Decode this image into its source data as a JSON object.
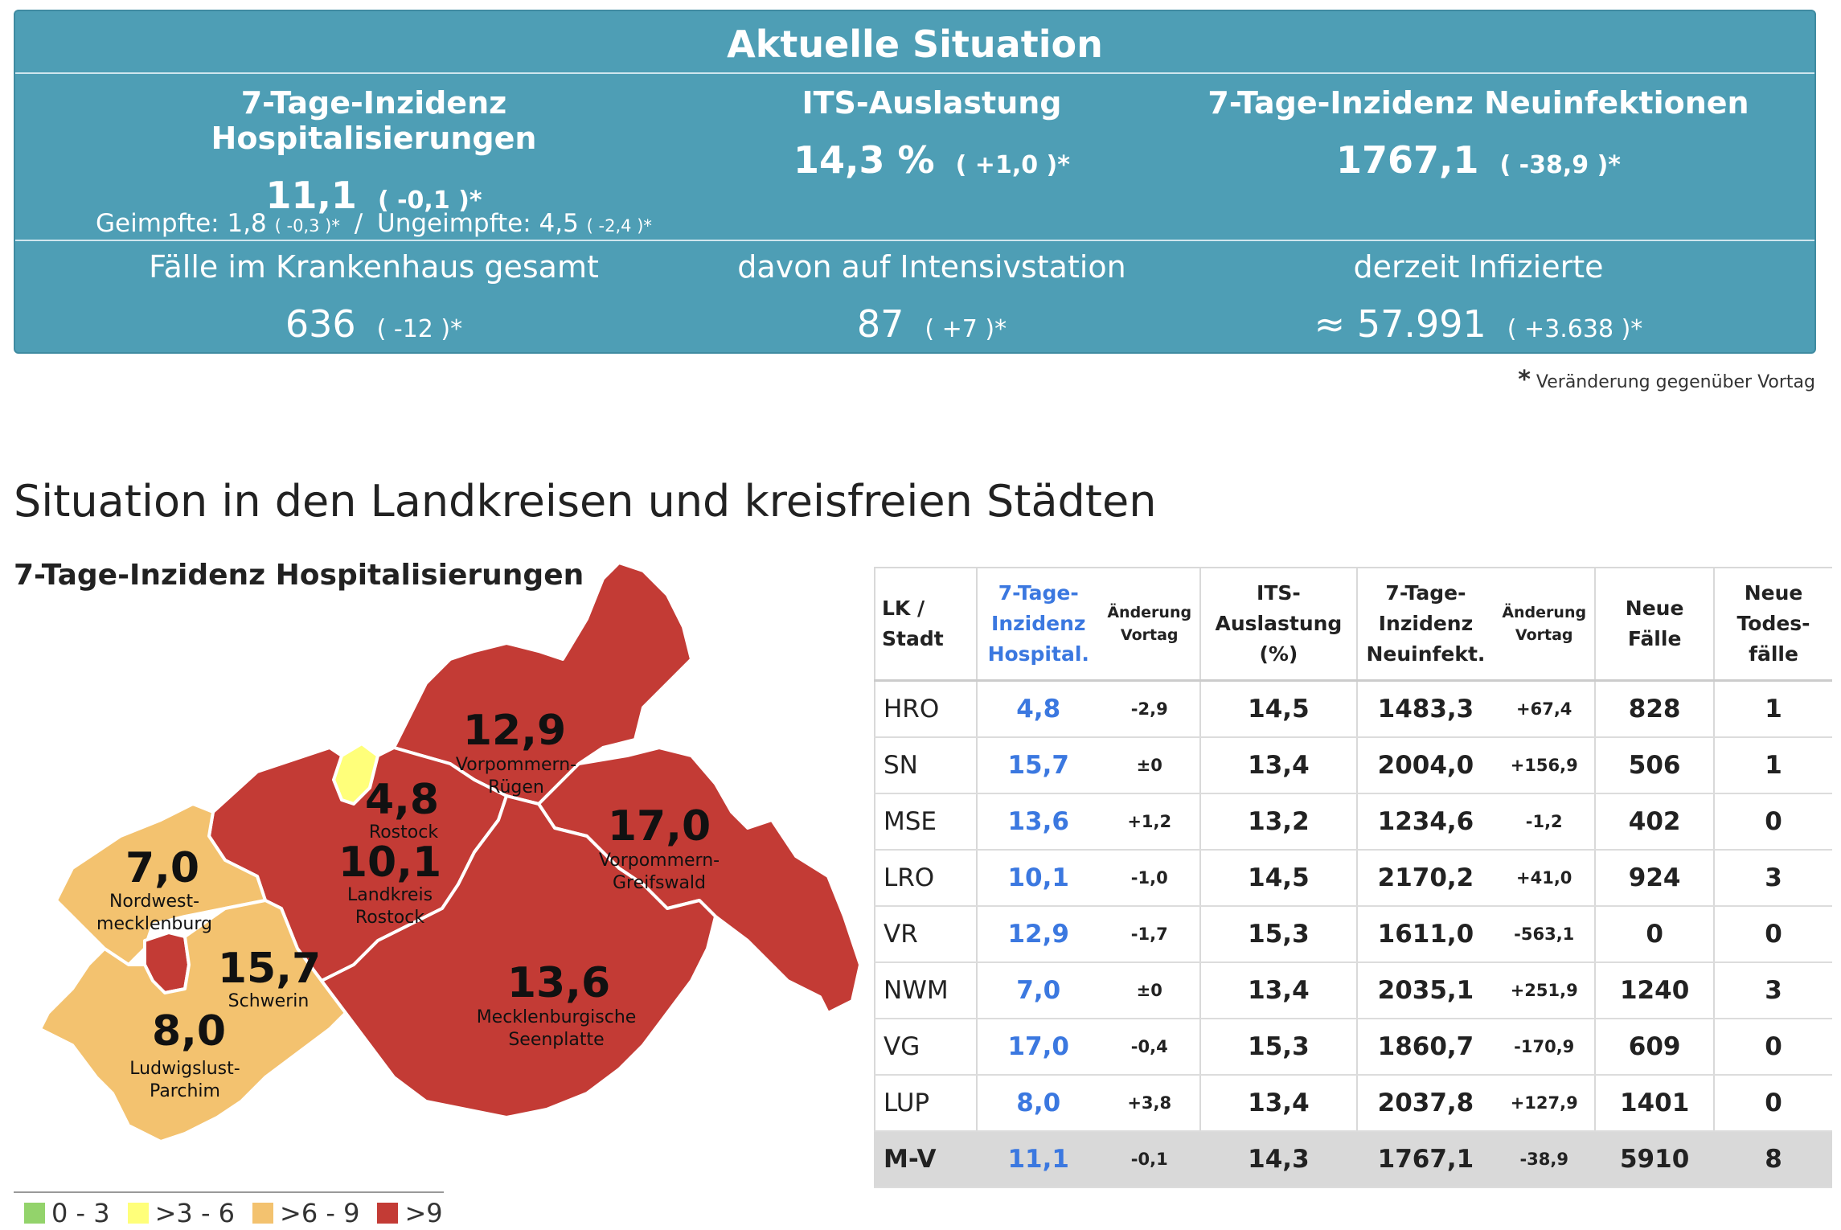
{
  "header": {
    "title": "Aktuelle Situation",
    "hosp": {
      "label": "7-Tage-Inzidenz Hospitalisierungen",
      "value": "11,1",
      "change": "( -0,1 )*",
      "vacc_label": "Geimpfte: 1,8",
      "vacc_change": "( -0,3 )*",
      "sep": "/",
      "unvacc_label": "Ungeimpfte: 4,5",
      "unvacc_change": "( -2,4 )*"
    },
    "its": {
      "label": "ITS-Auslastung",
      "value": "14,3 %",
      "change": "( +1,0 )*"
    },
    "neuinf": {
      "label": "7-Tage-Inzidenz Neuinfektionen",
      "value": "1767,1",
      "change": "( -38,9 )*"
    },
    "krankenhaus": {
      "label": "Fälle im Krankenhaus gesamt",
      "value": "636",
      "change": "( -12 )*"
    },
    "intensiv": {
      "label": "davon auf Intensivstation",
      "value": "87",
      "change": "( +7 )*"
    },
    "infizierte": {
      "label": "derzeit Infizierte",
      "value": "≈ 57.991",
      "change": "( +3.638 )*"
    }
  },
  "footnote": {
    "star": "*",
    "text": "Veränderung gegenüber Vortag"
  },
  "section_title": "Situation in den Landkreisen und kreisfreien Städten",
  "map": {
    "title": "7-Tage-Inzidenz Hospitalisierungen",
    "colors": {
      "red": "#c33b35",
      "orange": "#f3c26f",
      "yellow": "#ffff7a",
      "green": "#93d36b"
    },
    "regions": {
      "vr": {
        "value": "12,9",
        "name1": "Vorpommern-",
        "name2": "Rügen"
      },
      "hro": {
        "value": "4,8",
        "name1": "Rostock"
      },
      "lro": {
        "value": "10,1",
        "name1": "Landkreis",
        "name2": "Rostock"
      },
      "vg": {
        "value": "17,0",
        "name1": "Vorpommern-",
        "name2": "Greifswald"
      },
      "nwm": {
        "value": "7,0",
        "name1": "Nordwest-",
        "name2": "mecklenburg"
      },
      "sn": {
        "value": "15,7",
        "name1": "Schwerin"
      },
      "lup": {
        "value": "8,0",
        "name1": "Ludwigslust-",
        "name2": "Parchim"
      },
      "mse": {
        "value": "13,6",
        "name1": "Mecklenburgische",
        "name2": "Seenplatte"
      }
    },
    "legend": [
      {
        "label": "0 - 3",
        "color": "#93d36b"
      },
      {
        "label": ">3 - 6",
        "color": "#ffff7a"
      },
      {
        "label": ">6 - 9",
        "color": "#f3c26f"
      },
      {
        "label": ">9",
        "color": "#c33b35"
      }
    ]
  },
  "table": {
    "headers": {
      "region": [
        "LK /",
        "Stadt"
      ],
      "hosp": [
        "7-Tage-",
        "Inzidenz",
        "Hospital."
      ],
      "hosp_chg": [
        "Änderung",
        "Vortag"
      ],
      "its": [
        "ITS-",
        "Auslastung",
        "(%)"
      ],
      "neuinf": [
        "7-Tage-",
        "Inzidenz",
        "Neuinfekt."
      ],
      "neuinf_chg": [
        "Änderung",
        "Vortag"
      ],
      "faelle": [
        "Neue",
        "Fälle"
      ],
      "tod": [
        "Neue",
        "Todes-",
        "fälle"
      ]
    },
    "rows": [
      {
        "region": "HRO",
        "hosp": "4,8",
        "hosp_chg": "-2,9",
        "its": "14,5",
        "neuinf": "1483,3",
        "neuinf_chg": "+67,4",
        "faelle": "828",
        "tod": "1"
      },
      {
        "region": "SN",
        "hosp": "15,7",
        "hosp_chg": "±0",
        "its": "13,4",
        "neuinf": "2004,0",
        "neuinf_chg": "+156,9",
        "faelle": "506",
        "tod": "1"
      },
      {
        "region": "MSE",
        "hosp": "13,6",
        "hosp_chg": "+1,2",
        "its": "13,2",
        "neuinf": "1234,6",
        "neuinf_chg": "-1,2",
        "faelle": "402",
        "tod": "0"
      },
      {
        "region": "LRO",
        "hosp": "10,1",
        "hosp_chg": "-1,0",
        "its": "14,5",
        "neuinf": "2170,2",
        "neuinf_chg": "+41,0",
        "faelle": "924",
        "tod": "3"
      },
      {
        "region": "VR",
        "hosp": "12,9",
        "hosp_chg": "-1,7",
        "its": "15,3",
        "neuinf": "1611,0",
        "neuinf_chg": "-563,1",
        "faelle": "0",
        "tod": "0"
      },
      {
        "region": "NWM",
        "hosp": "7,0",
        "hosp_chg": "±0",
        "its": "13,4",
        "neuinf": "2035,1",
        "neuinf_chg": "+251,9",
        "faelle": "1240",
        "tod": "3"
      },
      {
        "region": "VG",
        "hosp": "17,0",
        "hosp_chg": "-0,4",
        "its": "15,3",
        "neuinf": "1860,7",
        "neuinf_chg": "-170,9",
        "faelle": "609",
        "tod": "0"
      },
      {
        "region": "LUP",
        "hosp": "8,0",
        "hosp_chg": "+3,8",
        "its": "13,4",
        "neuinf": "2037,8",
        "neuinf_chg": "+127,9",
        "faelle": "1401",
        "tod": "0"
      }
    ],
    "total": {
      "region": "M-V",
      "hosp": "11,1",
      "hosp_chg": "-0,1",
      "its": "14,3",
      "neuinf": "1767,1",
      "neuinf_chg": "-38,9",
      "faelle": "5910",
      "tod": "8"
    }
  }
}
